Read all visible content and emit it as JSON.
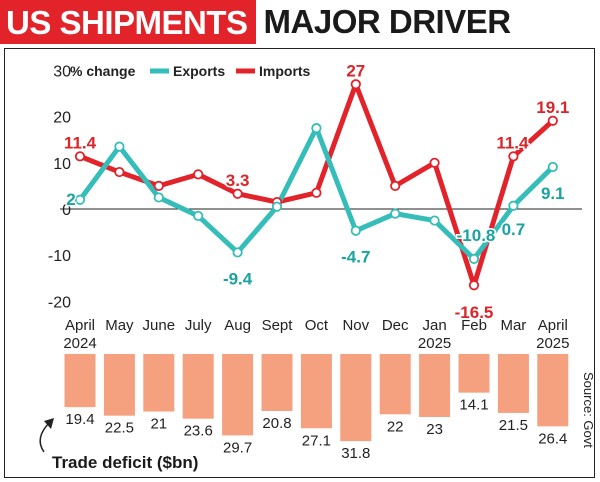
{
  "headline": {
    "part1": "US SHIPMENTS",
    "part2": "MAJOR DRIVER"
  },
  "colors": {
    "exports": "#35bdb9",
    "imports": "#e2232a",
    "bars": "#f5a07e",
    "headline_bg": "#e2232a",
    "export_label": "#1aa3a0",
    "import_label": "#d9262b"
  },
  "source": "Source: Govt",
  "chart_data": [
    {
      "type": "line",
      "x_labels": [
        [
          "April",
          "2024"
        ],
        [
          "May"
        ],
        [
          "June"
        ],
        [
          "July"
        ],
        [
          "Aug"
        ],
        [
          "Sept"
        ],
        [
          "Oct"
        ],
        [
          "Nov"
        ],
        [
          "Dec"
        ],
        [
          "Jan",
          "2025"
        ],
        [
          "Feb"
        ],
        [
          "Mar"
        ],
        [
          "April",
          "2025"
        ]
      ],
      "ylim": [
        -20,
        30
      ],
      "yticks": [
        30,
        20,
        10,
        0,
        -10,
        -20
      ],
      "legend": {
        "title": "% change",
        "placement": "top-left"
      },
      "series": [
        {
          "name": "Exports",
          "values": [
            2,
            13.5,
            2.5,
            -1.5,
            -9.4,
            0.5,
            17.5,
            -4.7,
            -1,
            -2.5,
            -10.8,
            0.7,
            9.1
          ],
          "labels": [
            {
              "i": 0,
              "text": "2"
            },
            {
              "i": 4,
              "text": "-9.4"
            },
            {
              "i": 7,
              "text": "-4.7"
            },
            {
              "i": 10,
              "text": "-10.8"
            },
            {
              "i": 11,
              "text": "0.7"
            },
            {
              "i": 12,
              "text": "9.1"
            }
          ]
        },
        {
          "name": "Imports",
          "values": [
            11.4,
            8,
            5,
            7.5,
            3.3,
            1.5,
            3.5,
            27,
            5,
            10,
            -16.5,
            11.4,
            19.1
          ],
          "labels": [
            {
              "i": 0,
              "text": "11.4"
            },
            {
              "i": 4,
              "text": "3.3"
            },
            {
              "i": 7,
              "text": "27"
            },
            {
              "i": 10,
              "text": "-16.5"
            },
            {
              "i": 11,
              "text": "11.4"
            },
            {
              "i": 12,
              "text": "19.1"
            }
          ]
        }
      ]
    },
    {
      "type": "bar",
      "title": "Trade deficit ($bn)",
      "values": [
        19.4,
        22.5,
        21,
        23.6,
        29.7,
        20.8,
        27.1,
        31.8,
        22,
        23,
        14.1,
        21.5,
        26.4
      ]
    }
  ]
}
